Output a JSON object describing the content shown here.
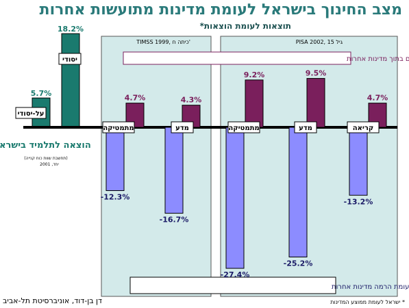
{
  "title": "מצב החינוך בישראל לעומת מדינות מתועשות אחרות",
  "subtitle": "תוצאות לעומת הוצאות*",
  "footer": {
    "author": "דן בן-דוד, אוניברסיטת תל-אביב",
    "note": "* ישראל לעומת ממוצע המדינות"
  },
  "colors": {
    "background_panel": "#d3eaea",
    "spending_bar": "#1a7a6e",
    "positive_bar": "#7a1f5c",
    "negative_bar": "#8c8cff",
    "title": "#2a7a7a"
  },
  "chart_data": {
    "type": "bar",
    "ylim": [
      -30,
      20
    ],
    "spending": {
      "label": "הוצאה לתלמיד בישראל",
      "note": "(תחשבת שוות כוח קנייה)",
      "note2": "יחד, 2001",
      "categories": [
        "על-יסודי",
        "יסודי"
      ],
      "values": [
        5.7,
        18.2
      ],
      "value_labels": [
        "5.7%",
        "18.2%"
      ]
    },
    "panels": [
      {
        "name": "TIMSS 1999, כיתה ח'",
        "categories": [
          "מתמטיקה",
          "מדע"
        ],
        "gap_values": [
          4.7,
          4.3
        ],
        "gap_labels": [
          "4.7%",
          "4.3%"
        ],
        "level_values": [
          -12.3,
          -16.7
        ],
        "level_labels": [
          "-12.3%",
          "-16.7%"
        ]
      },
      {
        "name": "PISA 2002, גיל 15",
        "categories": [
          "מתמטיקה",
          "מדע",
          "קריאה"
        ],
        "gap_values": [
          9.2,
          9.5,
          4.7
        ],
        "gap_labels": [
          "9.2%",
          "9.5%",
          "4.7%"
        ],
        "level_values": [
          -27.4,
          -25.2,
          -13.2
        ],
        "level_labels": [
          "-27.4%",
          "-25.2%",
          "-13.2%"
        ]
      }
    ],
    "annotations": {
      "gaps_box": "פערים בין תלמידים בישראל לעומת פערים בתוך מדינות אחרות",
      "levels_box": "רמת ההישגים בישראל לעומת הרמה מדינות אחרות"
    }
  }
}
